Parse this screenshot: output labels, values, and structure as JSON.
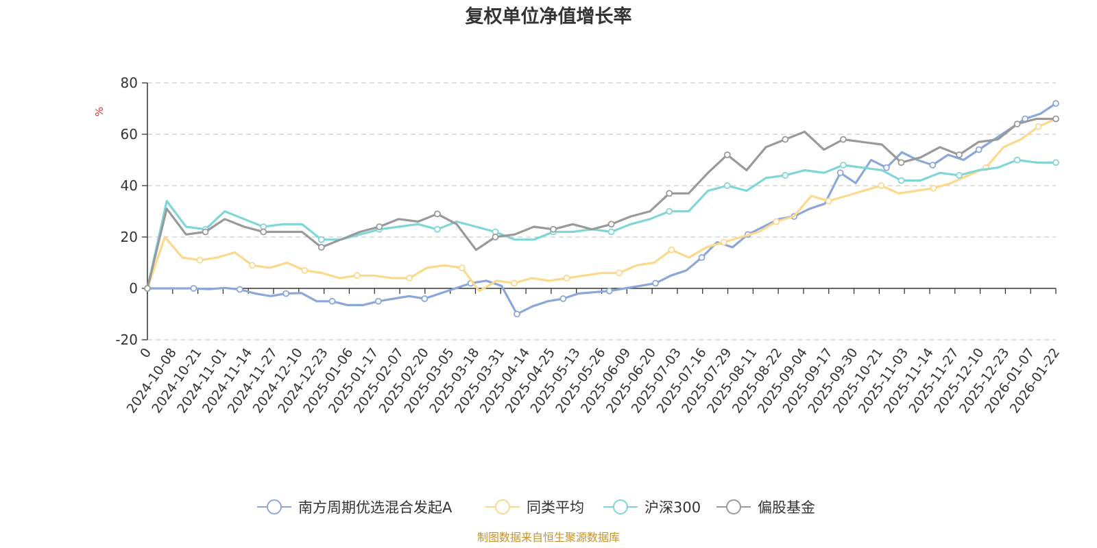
{
  "chart_data": {
    "type": "line",
    "title": "复权单位净值增长率",
    "ylabel": "%",
    "ylim": [
      -20,
      80
    ],
    "yticks": [
      -20,
      0,
      20,
      40,
      60,
      80
    ],
    "x_tick_labels": [
      "0",
      "2024-10-08",
      "2024-10-21",
      "2024-11-01",
      "2024-11-14",
      "2024-11-27",
      "2024-12-10",
      "2024-12-23",
      "2025-01-06",
      "2025-01-17",
      "2025-02-07",
      "2025-02-20",
      "2025-03-05",
      "2025-03-18",
      "2025-03-31",
      "2025-04-14",
      "2025-04-25",
      "2025-05-13",
      "2025-05-26",
      "2025-06-09",
      "2025-06-20",
      "2025-07-03",
      "2025-07-16",
      "2025-07-29",
      "2025-08-11",
      "2025-08-22",
      "2025-09-04",
      "2025-09-17",
      "2025-09-30",
      "2025-10-21",
      "2025-11-03",
      "2025-11-14",
      "2025-11-27",
      "2025-12-10",
      "2025-12-23",
      "2026-01-07",
      "2026-01-22"
    ],
    "grid": true,
    "legend_position": "bottom",
    "source": "制图数据来自恒生聚源数据库",
    "series": [
      {
        "name": "南方周期优选混合发起A",
        "color": "#8ba7d9",
        "values": [
          0,
          0,
          0,
          0,
          -0.3,
          0.2,
          -0.4,
          -2,
          -3,
          -2,
          -1.8,
          -5,
          -5,
          -6.5,
          -6.5,
          -5,
          -4,
          -3,
          -4,
          -2,
          0,
          2,
          3,
          1,
          -10,
          -7,
          -5,
          -4,
          -2,
          -1.5,
          -1,
          0,
          1,
          2,
          5,
          7,
          12,
          18,
          16,
          21,
          24,
          27,
          28,
          31,
          33,
          45,
          41,
          50,
          47,
          53,
          50,
          48,
          52,
          50,
          54,
          58,
          62,
          66,
          68,
          72
        ]
      },
      {
        "name": "同类平均",
        "color": "#fcd88a",
        "values": [
          0,
          20,
          12,
          11,
          12,
          14,
          9,
          8,
          10,
          7,
          6,
          4,
          5,
          5,
          4,
          4,
          8,
          9,
          8,
          -1,
          3,
          2,
          4,
          3,
          4,
          5,
          6,
          6,
          9,
          10,
          15,
          12,
          16,
          18,
          20,
          22,
          26,
          28,
          36,
          34,
          36,
          38,
          40,
          37,
          38,
          39,
          41,
          44,
          47,
          55,
          58,
          63,
          66
        ]
      },
      {
        "name": "沪深300",
        "color": "#7fd6d6",
        "values": [
          0,
          34,
          24,
          23,
          30,
          27,
          24,
          25,
          25,
          19,
          19,
          21,
          23,
          24,
          25,
          23,
          26,
          24,
          22,
          19,
          19,
          22,
          22,
          23,
          22,
          25,
          27,
          30,
          30,
          38,
          40,
          38,
          43,
          44,
          46,
          45,
          48,
          47,
          46,
          42,
          42,
          45,
          44,
          46,
          47,
          50,
          49,
          49
        ]
      },
      {
        "name": "偏股基金",
        "color": "#999999",
        "values": [
          0,
          31,
          21,
          22,
          27,
          24,
          22,
          22,
          22,
          16,
          19,
          22,
          24,
          27,
          26,
          29,
          25,
          15,
          20,
          21,
          24,
          23,
          25,
          23,
          25,
          28,
          30,
          37,
          37,
          45,
          52,
          46,
          55,
          58,
          61,
          54,
          58,
          57,
          56,
          49,
          51,
          55,
          52,
          57,
          58,
          64,
          66,
          66
        ]
      }
    ]
  }
}
